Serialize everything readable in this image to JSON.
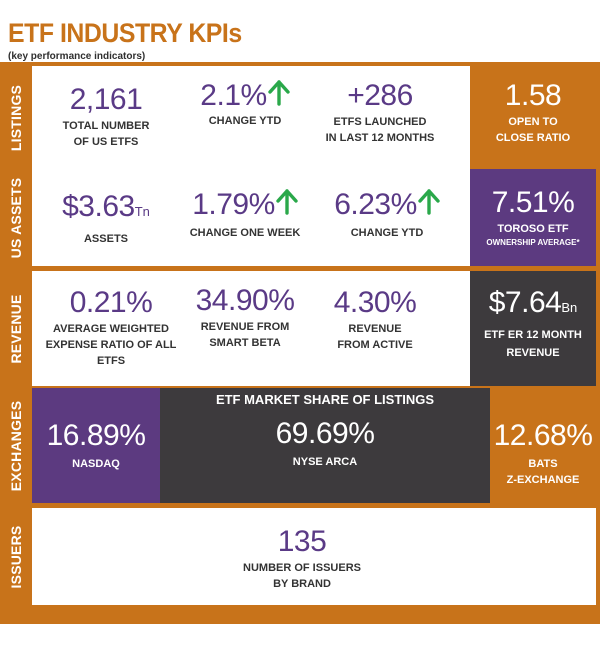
{
  "header": {
    "title": "ETF INDUSTRY  KPIs",
    "subtitle": "(key performance indicators)"
  },
  "colors": {
    "orange": "#c8731a",
    "purple": "#5c3a80",
    "dark": "#3d3a3d",
    "value_text": "#5a3a86",
    "arrow_green": "#2aa84a"
  },
  "listings": {
    "row_label": "LISTINGS",
    "total": {
      "value": "2,161",
      "label_line1": "TOTAL NUMBER",
      "label_line2": "OF  US ETFs"
    },
    "change_ytd": {
      "value": "2.1%",
      "label": "CHANGE YTD",
      "trend_icon": "up-arrow-icon"
    },
    "launched": {
      "value": "+286",
      "label_line1": "ETFs LAUNCHED",
      "label_line2": "IN LAST 12 MONTHS"
    },
    "ratio": {
      "value": "1.58",
      "label_line1": "OPEN TO",
      "label_line2": "CLOSE RATIO"
    }
  },
  "us_assets": {
    "row_label": "US ASSETS",
    "assets": {
      "value": "$3.63",
      "unit": "Tn",
      "label": "ASSETS"
    },
    "change_week": {
      "value": "1.79%",
      "label": "CHANGE ONE WEEK",
      "trend_icon": "up-arrow-icon"
    },
    "change_ytd": {
      "value": "6.23%",
      "label": "CHANGE YTD",
      "trend_icon": "up-arrow-icon"
    },
    "toroso": {
      "value": "7.51%",
      "label_line1": "TOROSO ETF",
      "label_line2": "OWNERSHIP AVERAGE*"
    }
  },
  "revenue": {
    "row_label": "REVENUE",
    "expense": {
      "value": "0.21%",
      "label_line1": "AVERAGE WEIGHTED",
      "label_line2": "EXPENSE RATIO OF ALL",
      "label_line3": "ETFS"
    },
    "smart_beta": {
      "value": "34.90%",
      "label_line1": "REVENUE FROM",
      "label_line2": "SMART BETA"
    },
    "active": {
      "value": "4.30%",
      "label_line1": "REVENUE",
      "label_line2": "FROM ACTIVE"
    },
    "er_revenue": {
      "value": "$7.64",
      "unit": "Bn",
      "label_line1": "ETF ER 12 MONTH",
      "label_line2": "REVENUE"
    }
  },
  "exchanges": {
    "row_label": "EXCHANGES",
    "heading": "ETF MARKET SHARE OF LISTINGS",
    "nasdaq": {
      "value": "16.89%",
      "label": "NASDAQ"
    },
    "nyse": {
      "value": "69.69%",
      "label": "NYSE ARCA"
    },
    "bats": {
      "value": "12.68%",
      "label_line1": "BATS",
      "label_line2": "Z-EXCHANGE"
    }
  },
  "issuers": {
    "row_label": "ISSUERS",
    "count": {
      "value": "135",
      "label_line1": "NUMBER OF ISSUERS",
      "label_line2": "BY BRAND"
    }
  }
}
